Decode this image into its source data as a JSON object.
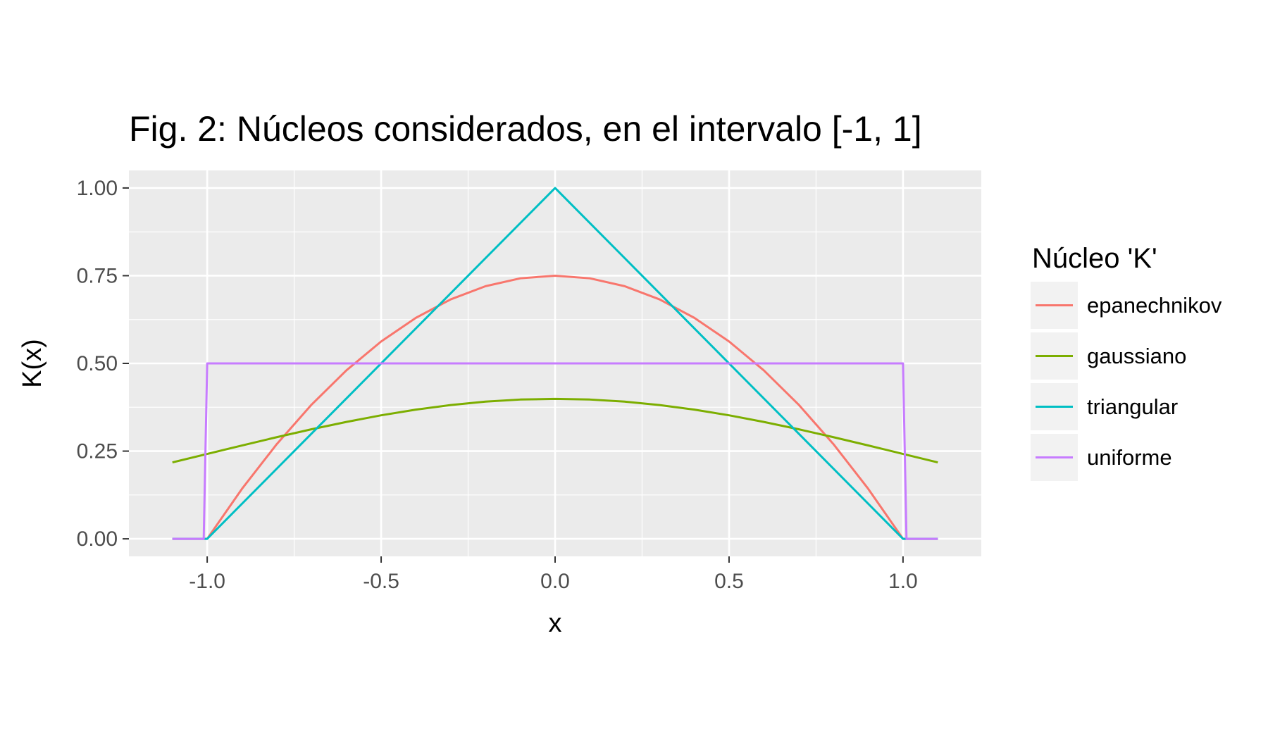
{
  "chart_data": {
    "type": "line",
    "title": "Fig. 2: Núcleos considerados, en el intervalo [-1, 1]",
    "xlabel": "x",
    "ylabel": "K(x)",
    "xlim": [
      -1.225,
      1.225
    ],
    "ylim": [
      -0.05,
      1.05
    ],
    "x_ticks": [
      -1.0,
      -0.5,
      0.0,
      0.5,
      1.0
    ],
    "x_tick_labels": [
      "-1.0",
      "-0.5",
      "0.0",
      "0.5",
      "1.0"
    ],
    "y_ticks": [
      0.0,
      0.25,
      0.5,
      0.75,
      1.0
    ],
    "y_tick_labels": [
      "0.00",
      "0.25",
      "0.50",
      "0.75",
      "1.00"
    ],
    "grid": true,
    "legend": {
      "title": "Núcleo 'K'",
      "position": "right"
    },
    "series": [
      {
        "name": "epanechnikov",
        "color": "#F8766D",
        "x": [
          -1.1,
          -1.0,
          -0.9,
          -0.8,
          -0.7,
          -0.6,
          -0.5,
          -0.4,
          -0.3,
          -0.2,
          -0.1,
          0.0,
          0.1,
          0.2,
          0.3,
          0.4,
          0.5,
          0.6,
          0.7,
          0.8,
          0.9,
          1.0,
          1.1
        ],
        "y": [
          0.0,
          0.0,
          0.1425,
          0.27,
          0.3825,
          0.48,
          0.5625,
          0.63,
          0.6825,
          0.72,
          0.7425,
          0.75,
          0.7425,
          0.72,
          0.6825,
          0.63,
          0.5625,
          0.48,
          0.3825,
          0.27,
          0.1425,
          0.0,
          0.0
        ]
      },
      {
        "name": "gaussiano",
        "color": "#7CAE00",
        "x": [
          -1.1,
          -1.0,
          -0.9,
          -0.8,
          -0.7,
          -0.6,
          -0.5,
          -0.4,
          -0.3,
          -0.2,
          -0.1,
          0.0,
          0.1,
          0.2,
          0.3,
          0.4,
          0.5,
          0.6,
          0.7,
          0.8,
          0.9,
          1.0,
          1.1
        ],
        "y": [
          0.2179,
          0.242,
          0.2661,
          0.2897,
          0.3123,
          0.3332,
          0.3521,
          0.3683,
          0.3814,
          0.391,
          0.397,
          0.3989,
          0.397,
          0.391,
          0.3814,
          0.3683,
          0.3521,
          0.3332,
          0.3123,
          0.2897,
          0.2661,
          0.242,
          0.2179
        ]
      },
      {
        "name": "triangular",
        "color": "#00BFC4",
        "x": [
          -1.1,
          -1.0,
          0.0,
          1.0,
          1.1
        ],
        "y": [
          0.0,
          0.0,
          1.0,
          0.0,
          0.0
        ]
      },
      {
        "name": "uniforme",
        "color": "#C77CFF",
        "x": [
          -1.1,
          -1.01,
          -1.0,
          1.0,
          1.01,
          1.1
        ],
        "y": [
          0.0,
          0.0,
          0.5,
          0.5,
          0.0,
          0.0
        ]
      }
    ]
  }
}
